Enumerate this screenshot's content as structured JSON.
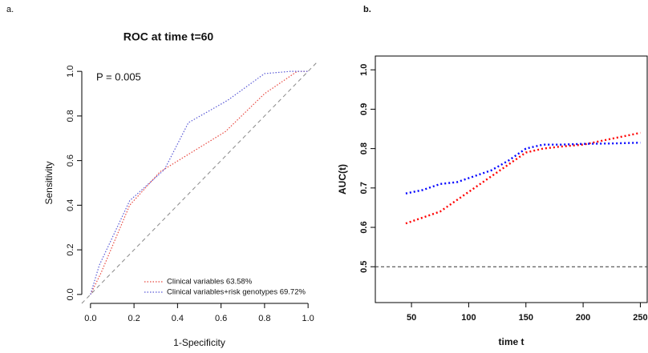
{
  "chart_data": [
    {
      "type": "line",
      "panel_label": "a.",
      "title": "ROC at time t=60",
      "xlabel": "1-Specificity",
      "ylabel": "Sensitivity",
      "annotation": "P = 0.005",
      "diagonal": true,
      "legend": "bottomright",
      "frame": false,
      "xlim": [
        -0.04,
        1.04
      ],
      "ylim": [
        -0.04,
        1.04
      ],
      "xticks": [
        {
          "value": 0,
          "label": "0.0"
        },
        0.2,
        0.4,
        0.6,
        0.8,
        {
          "value": 1,
          "label": "1.0"
        }
      ],
      "yticks": [
        {
          "value": 0,
          "label": "0.0"
        },
        0.2,
        0.4,
        0.6,
        0.8,
        {
          "value": 1,
          "label": "1.0"
        }
      ],
      "series": [
        {
          "name": "Clinical variables 63.58%",
          "color": "#e8473f",
          "x": [
            0,
            0.05,
            0.18,
            0.32,
            0.62,
            0.8,
            0.95,
            1
          ],
          "values": [
            0,
            0.1,
            0.4,
            0.55,
            0.73,
            0.9,
            1,
            1
          ]
        },
        {
          "name": "Clinical variables+risk genotypes 69.72%",
          "color": "#5a5ad6",
          "x": [
            0,
            0.04,
            0.18,
            0.34,
            0.45,
            0.63,
            0.8,
            0.92,
            1
          ],
          "values": [
            0,
            0.13,
            0.42,
            0.56,
            0.77,
            0.87,
            0.99,
            1,
            1
          ]
        }
      ]
    },
    {
      "type": "line",
      "panel_label": "b.",
      "xlabel": "time t",
      "ylabel": "AUC(t)",
      "hline": 0.5,
      "frame": true,
      "xlim": [
        18.4,
        256
      ],
      "ylim": [
        0.409,
        1.035
      ],
      "xticks": [
        50,
        100,
        150,
        200,
        250
      ],
      "yticks": [
        0.5,
        0.6,
        0.7,
        0.8,
        0.9,
        {
          "value": 1,
          "label": "1.0"
        }
      ],
      "x": [
        45,
        60,
        75,
        90,
        105,
        120,
        135,
        150,
        165,
        180,
        200,
        225,
        250
      ],
      "series": [
        {
          "color": "#ff0000",
          "values": [
            0.61,
            0.625,
            0.64,
            0.67,
            0.7,
            0.73,
            0.76,
            0.79,
            0.8,
            0.805,
            0.81,
            0.825,
            0.84
          ]
        },
        {
          "color": "#0000ff",
          "values": [
            0.686,
            0.695,
            0.71,
            0.715,
            0.73,
            0.745,
            0.77,
            0.8,
            0.81,
            0.81,
            0.812,
            0.813,
            0.815
          ]
        }
      ]
    }
  ]
}
